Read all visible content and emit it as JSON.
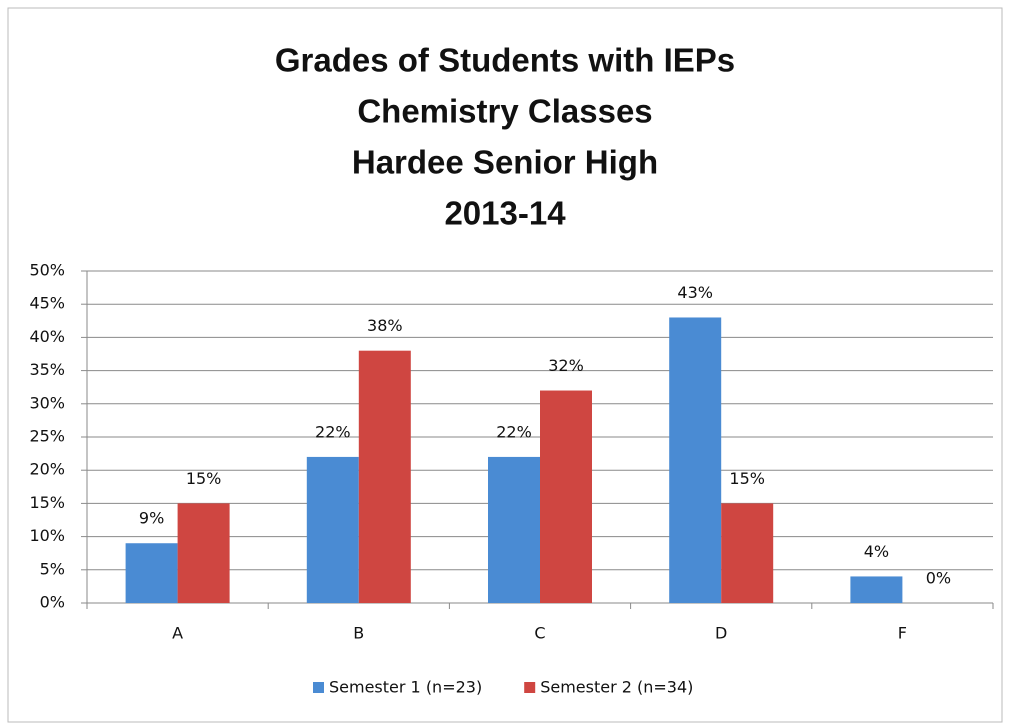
{
  "chart_data": {
    "type": "bar",
    "title": [
      "Grades of Students with IEPs",
      "Chemistry Classes",
      "Hardee Senior High",
      "2013-14"
    ],
    "categories": [
      "A",
      "B",
      "C",
      "D",
      "F"
    ],
    "series": [
      {
        "name": "Semester 1 (n=23)",
        "color": "#4a8bd3",
        "values": [
          9,
          22,
          22,
          43,
          4
        ],
        "value_labels": [
          "9%",
          "22%",
          "22%",
          "43%",
          "4%"
        ]
      },
      {
        "name": "Semester 2 (n=34)",
        "color": "#cf4641",
        "values": [
          15,
          38,
          32,
          15,
          0
        ],
        "value_labels": [
          "15%",
          "38%",
          "32%",
          "15%",
          "0%"
        ]
      }
    ],
    "ylim": [
      0,
      50
    ],
    "yticks": [
      {
        "value": 0,
        "label": "0%"
      },
      {
        "value": 5,
        "label": "5%"
      },
      {
        "value": 10,
        "label": "10%"
      },
      {
        "value": 15,
        "label": "15%"
      },
      {
        "value": 20,
        "label": "20%"
      },
      {
        "value": 25,
        "label": "25%"
      },
      {
        "value": 30,
        "label": "30%"
      },
      {
        "value": 35,
        "label": "35%"
      },
      {
        "value": 40,
        "label": "40%"
      },
      {
        "value": 45,
        "label": "45%"
      },
      {
        "value": 50,
        "label": "50%"
      }
    ],
    "grid": true,
    "legend": "bottom"
  }
}
